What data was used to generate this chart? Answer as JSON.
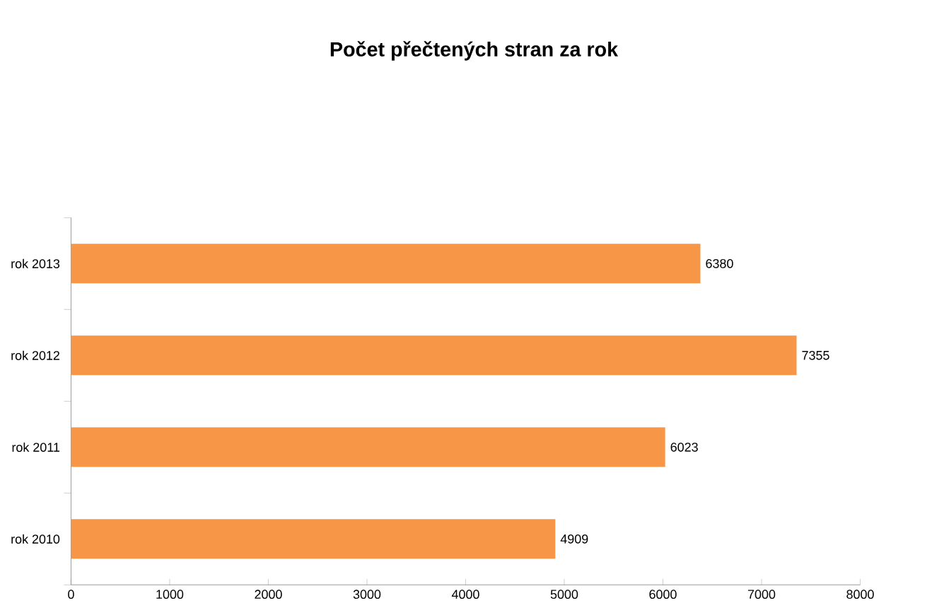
{
  "chart_data": {
    "type": "bar",
    "orientation": "horizontal",
    "title": "Počet přečtených stran za rok",
    "categories": [
      "rok 2013",
      "rok 2012",
      "rok 2011",
      "rok 2010"
    ],
    "values": [
      6380,
      7355,
      6023,
      4909
    ],
    "color": "#f79646",
    "data_labels": true,
    "xlim": [
      0,
      8000
    ],
    "xticks": [
      0,
      1000,
      2000,
      3000,
      4000,
      5000,
      6000,
      7000,
      8000
    ],
    "grid": false,
    "legend": false
  }
}
